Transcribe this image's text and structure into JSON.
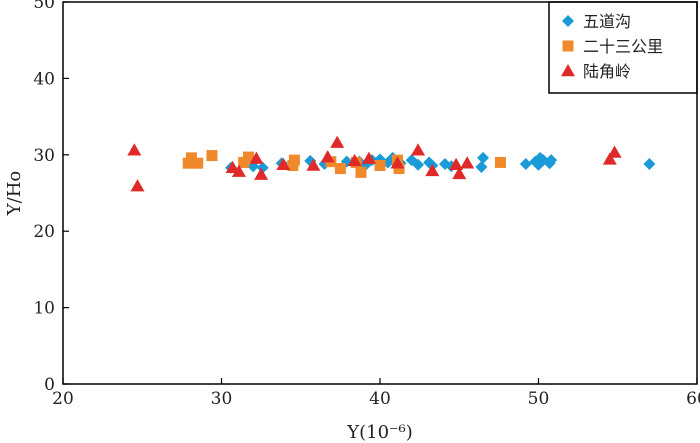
{
  "chart_data": {
    "type": "scatter",
    "title": "",
    "xlabel": "Y(10⁻⁶)",
    "ylabel": "Y/Ho",
    "xlim": [
      20,
      60
    ],
    "ylim": [
      0,
      50
    ],
    "xticks": [
      20,
      30,
      40,
      50,
      60
    ],
    "yticks": [
      0,
      10,
      20,
      30,
      40,
      50
    ],
    "grid": false,
    "legend_position": "top-right",
    "series": [
      {
        "name": "五道沟",
        "marker": "diamond",
        "color": "#1a9bd7",
        "points": [
          [
            30.6,
            28.3
          ],
          [
            32.0,
            28.5
          ],
          [
            32.6,
            28.3
          ],
          [
            33.8,
            28.9
          ],
          [
            35.6,
            29.2
          ],
          [
            36.5,
            28.8
          ],
          [
            37.9,
            29.1
          ],
          [
            38.7,
            29.1
          ],
          [
            39.1,
            28.7
          ],
          [
            39.5,
            29.3
          ],
          [
            40.0,
            29.4
          ],
          [
            40.5,
            29.0
          ],
          [
            40.8,
            29.6
          ],
          [
            41.3,
            28.9
          ],
          [
            42.0,
            29.3
          ],
          [
            42.4,
            28.7
          ],
          [
            43.1,
            29.0
          ],
          [
            43.3,
            28.6
          ],
          [
            44.1,
            28.8
          ],
          [
            44.5,
            28.5
          ],
          [
            46.4,
            28.4
          ],
          [
            46.5,
            29.6
          ],
          [
            49.2,
            28.8
          ],
          [
            49.8,
            29.1
          ],
          [
            50.0,
            28.7
          ],
          [
            50.1,
            29.6
          ],
          [
            50.3,
            29.3
          ],
          [
            50.7,
            28.9
          ],
          [
            50.8,
            29.3
          ],
          [
            57.0,
            28.8
          ]
        ]
      },
      {
        "name": "二十三公里",
        "marker": "square",
        "color": "#f0892b",
        "points": [
          [
            27.9,
            28.9
          ],
          [
            28.1,
            29.6
          ],
          [
            28.5,
            28.9
          ],
          [
            29.4,
            29.9
          ],
          [
            31.4,
            29.0
          ],
          [
            31.7,
            29.7
          ],
          [
            34.5,
            28.6
          ],
          [
            34.6,
            29.3
          ],
          [
            36.9,
            29.1
          ],
          [
            37.5,
            28.2
          ],
          [
            38.5,
            29.0
          ],
          [
            38.8,
            27.7
          ],
          [
            40.0,
            28.6
          ],
          [
            41.1,
            29.3
          ],
          [
            41.2,
            28.2
          ],
          [
            47.6,
            29.0
          ]
        ]
      },
      {
        "name": "陆角岭",
        "marker": "triangle",
        "color": "#e02a2a",
        "points": [
          [
            24.5,
            30.6
          ],
          [
            24.7,
            25.9
          ],
          [
            30.7,
            28.3
          ],
          [
            31.1,
            27.8
          ],
          [
            32.2,
            29.5
          ],
          [
            32.5,
            27.4
          ],
          [
            33.9,
            28.7
          ],
          [
            35.8,
            28.6
          ],
          [
            36.7,
            29.7
          ],
          [
            37.3,
            31.6
          ],
          [
            38.4,
            29.2
          ],
          [
            39.3,
            29.5
          ],
          [
            41.1,
            28.9
          ],
          [
            42.4,
            30.6
          ],
          [
            43.3,
            27.9
          ],
          [
            44.8,
            28.7
          ],
          [
            45.0,
            27.5
          ],
          [
            45.5,
            28.9
          ],
          [
            54.5,
            29.4
          ],
          [
            54.8,
            30.3
          ]
        ]
      }
    ]
  }
}
